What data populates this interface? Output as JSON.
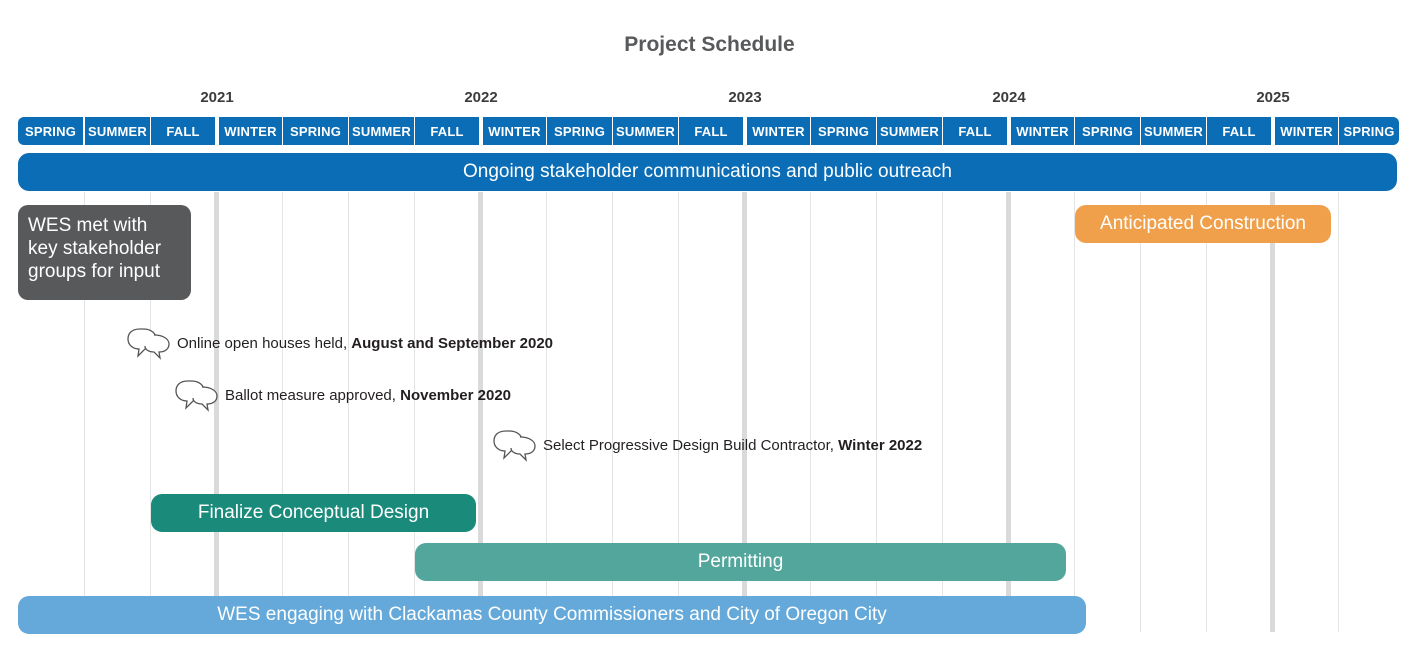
{
  "title": "Project Schedule",
  "timeline": {
    "years": [
      "2021",
      "2022",
      "2023",
      "2024",
      "2025"
    ],
    "seasons": [
      "SPRING",
      "SUMMER",
      "FALL",
      "WINTER",
      "SPRING",
      "SUMMER",
      "FALL",
      "WINTER",
      "SPRING",
      "SUMMER",
      "FALL",
      "WINTER",
      "SPRING",
      "SUMMER",
      "FALL",
      "WINTER",
      "SPRING",
      "SUMMER",
      "FALL",
      "WINTER",
      "SPRING"
    ]
  },
  "activities": {
    "outreach": {
      "label": "Ongoing stakeholder communications and public outreach",
      "start_season": 0,
      "end_season": 20,
      "color": "#0a6db6"
    },
    "stakeholder_meetings": {
      "label": "WES met with key stakeholder groups for input",
      "start_season": 0,
      "end_season": 2,
      "color": "#58595b"
    },
    "construction": {
      "label": "Anticipated Construction",
      "start_season": 16,
      "end_season": 19,
      "color": "#f0a04b"
    },
    "conceptual_design": {
      "label": "Finalize Conceptual Design",
      "start_season": 2,
      "end_season": 6,
      "color": "#1a8a7a"
    },
    "permitting": {
      "label": "Permitting",
      "start_season": 6,
      "end_season": 15,
      "color": "#52a69c"
    },
    "commissioners": {
      "label": "WES engaging with Clackamas County Commissioners and City of Oregon City",
      "start_season": 0,
      "end_season": 15,
      "color": "#64a9d9"
    }
  },
  "milestones": [
    {
      "text": "Online open houses held, ",
      "date": "August and September 2020"
    },
    {
      "text": "Ballot measure approved, ",
      "date": "November 2020"
    },
    {
      "text": "Select Progressive Design Build Contractor, ",
      "date": "Winter 2022"
    }
  ],
  "icons": {
    "milestone": "speech-bubbles-icon"
  }
}
